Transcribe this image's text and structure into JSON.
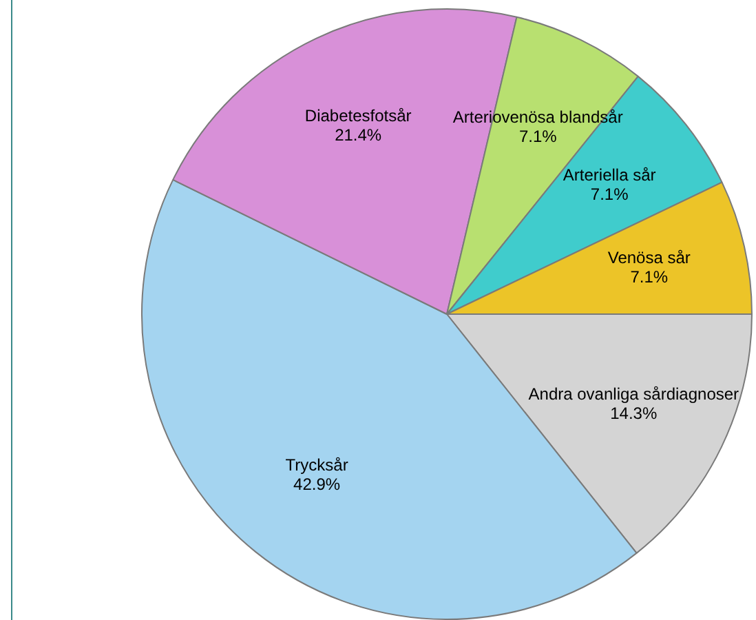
{
  "chart_data": {
    "type": "pie",
    "categories": [
      "Andra ovanliga sårdiagnoser",
      "Trycksår",
      "Diabetesfotsår",
      "Arteriovenösa blandsår",
      "Arteriella sår",
      "Venösa sår"
    ],
    "values": [
      14.3,
      42.9,
      21.4,
      7.1,
      7.1,
      7.1
    ],
    "colors": [
      "#d4d4d4",
      "#a4d4f0",
      "#d890d8",
      "#b8e070",
      "#40cccc",
      "#ecc428"
    ],
    "value_labels": [
      "14.3%",
      "42.9%",
      "21.4%",
      "7.1%",
      "7.1%",
      "7.1%"
    ],
    "legend": false
  }
}
